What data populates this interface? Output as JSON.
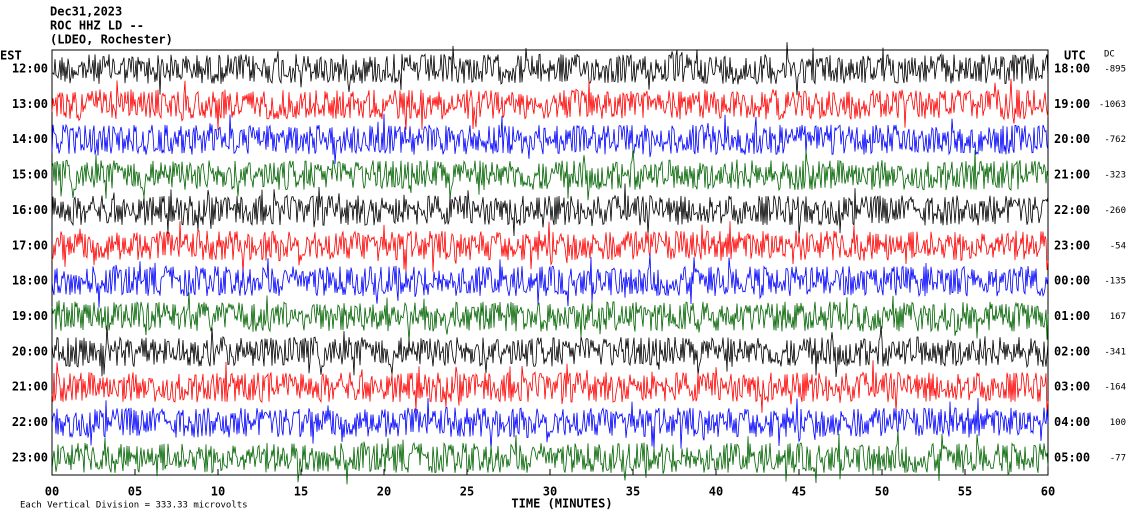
{
  "chart_data": {
    "type": "helicorder",
    "title_lines": [
      "Dec31,2023",
      "ROC HHZ LD --",
      "(LDEO, Rochester)"
    ],
    "left_axis_label": "EST",
    "right_axis_label": "UTC",
    "dc_label": "DC",
    "est_labels": [
      "12:00",
      "13:00",
      "14:00",
      "15:00",
      "16:00",
      "17:00",
      "18:00",
      "19:00",
      "20:00",
      "21:00",
      "22:00",
      "23:00"
    ],
    "utc_labels": [
      "18:00",
      "19:00",
      "20:00",
      "21:00",
      "22:00",
      "23:00",
      "00:00",
      "01:00",
      "02:00",
      "03:00",
      "04:00",
      "05:00"
    ],
    "dc_values": [
      -895,
      -1063,
      -762,
      -323,
      -260,
      -54,
      -135,
      167,
      -341,
      -164,
      100,
      -77
    ],
    "colors": [
      "#000000",
      "#ff0000",
      "#0000ff",
      "#006400"
    ],
    "xlim": [
      0,
      60
    ],
    "xticks": [
      {
        "value": 0,
        "label": "00"
      },
      {
        "value": 5,
        "label": "05"
      },
      10,
      15,
      20,
      25,
      30,
      35,
      40,
      45,
      50,
      55,
      60
    ],
    "xlabel": "TIME (MINUTES)",
    "footer": "Each Vertical Division =  333.33 microvolts"
  }
}
